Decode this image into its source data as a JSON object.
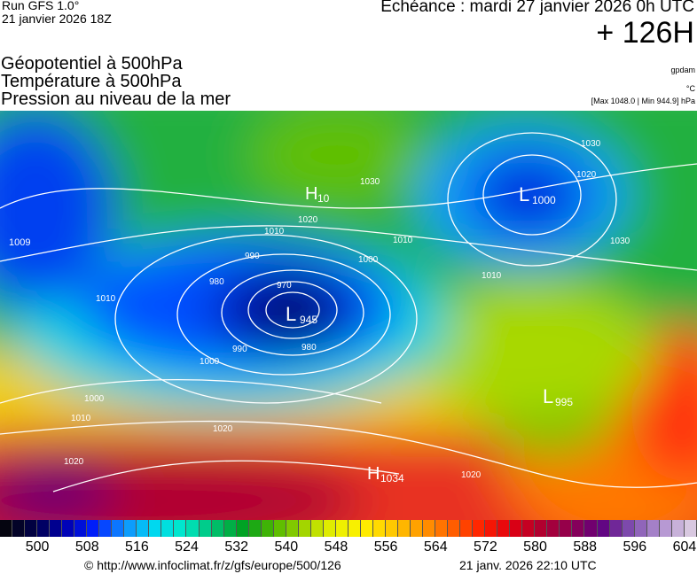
{
  "header": {
    "run": "Run GFS 1.0°",
    "run_date": "21 janvier 2026 18Z",
    "echeance": "Echéance : mardi 27 janvier 2026 0h UTC",
    "lead": "+ 126H",
    "titles": [
      "Géopotentiel à 500hPa",
      "Température à 500hPa",
      "Pression au niveau de la mer"
    ],
    "unit_geo": "gpdam",
    "unit_temp": "°C",
    "pressure_range": "[Max 1048.0 | Min 944.9] hPa"
  },
  "footer": {
    "url": "© http://www.infoclimat.fr/z/gfs/europe/500/126",
    "generated": "21 janv. 2026 22:10 UTC"
  },
  "chart_data": {
    "type": "heatmap",
    "colorbar": {
      "ticks": [
        500,
        508,
        516,
        524,
        532,
        540,
        548,
        556,
        564,
        572,
        580,
        588,
        596,
        604
      ],
      "range": [
        494,
        606
      ],
      "step": 2,
      "color_stops": [
        "#050510",
        "#00004a",
        "#0000b0",
        "#0020ff",
        "#1090ff",
        "#00d8f0",
        "#00e8c8",
        "#00c070",
        "#00a020",
        "#50b800",
        "#a0d400",
        "#e8f000",
        "#fff000",
        "#ffc800",
        "#ff9800",
        "#ff6000",
        "#ff2000",
        "#e00010",
        "#b00030",
        "#900050",
        "#600080",
        "#8050b0",
        "#b090d0",
        "#d8c8e0"
      ]
    },
    "pressure_centers": [
      {
        "type": "L",
        "value": "945"
      },
      {
        "type": "L",
        "value": "1000"
      },
      {
        "type": "L",
        "value": "1009"
      },
      {
        "type": "L",
        "value": "995"
      },
      {
        "type": "H",
        "value": "10"
      },
      {
        "type": "H",
        "value": "1034"
      }
    ],
    "isobar_labels": [
      "970",
      "980",
      "980",
      "990",
      "990",
      "1000",
      "1000",
      "1000",
      "1010",
      "1010",
      "1010",
      "1010",
      "1010",
      "1020",
      "1020",
      "1020",
      "1020",
      "1020",
      "1030",
      "1030",
      "1030"
    ]
  }
}
